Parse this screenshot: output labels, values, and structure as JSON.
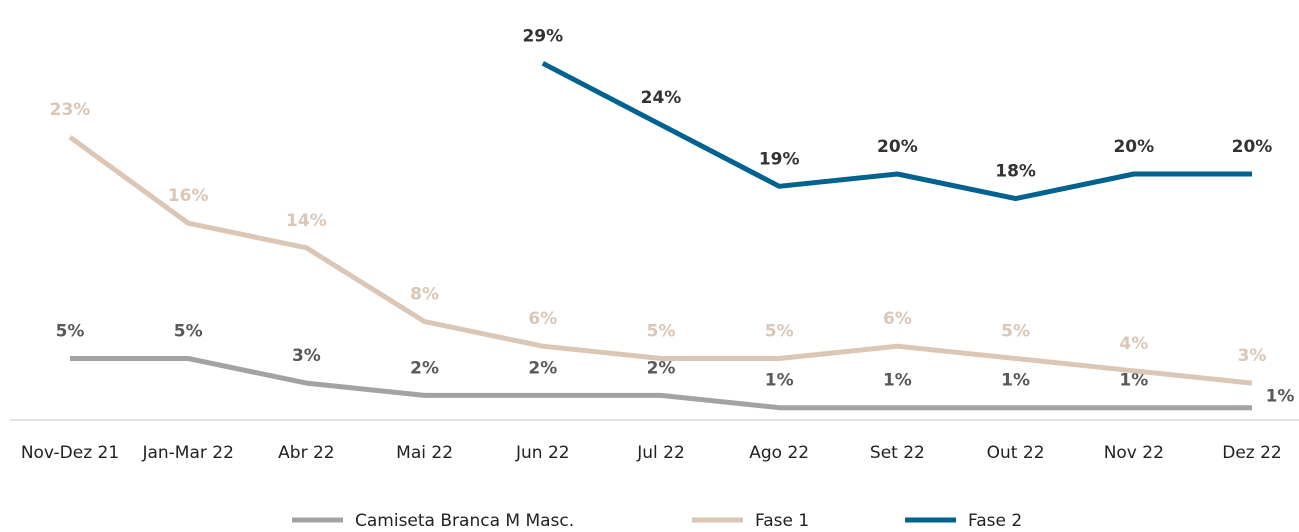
{
  "chart_data": {
    "type": "line",
    "categories": [
      "Nov-Dez 21",
      "Jan-Mar 22",
      "Abr 22",
      "Mai 22",
      "Jun 22",
      "Jul 22",
      "Ago 22",
      "Set 22",
      "Out 22",
      "Nov 22",
      "Dez 22"
    ],
    "series": [
      {
        "name": "Camiseta Branca M Masc.",
        "color": "#a3a3a3",
        "label_color": "#595959",
        "values": [
          5,
          5,
          3,
          2,
          2,
          2,
          1,
          1,
          1,
          1,
          1
        ],
        "value_labels": [
          "5%",
          "5%",
          "3%",
          "2%",
          "2%",
          "2%",
          "1%",
          "1%",
          "1%",
          "1%",
          "1%"
        ]
      },
      {
        "name": "Fase 1",
        "color": "#dcc6b5",
        "label_color": "#dcc6b5",
        "values": [
          23,
          16,
          14,
          8,
          6,
          5,
          5,
          6,
          5,
          4,
          3
        ],
        "value_labels": [
          "23%",
          "16%",
          "14%",
          "8%",
          "6%",
          "5%",
          "5%",
          "6%",
          "5%",
          "4%",
          "3%"
        ]
      },
      {
        "name": "Fase 2",
        "color": "#00628f",
        "label_color": "#333333",
        "values": [
          null,
          null,
          null,
          null,
          29,
          24,
          19,
          20,
          18,
          20,
          20
        ],
        "value_labels": [
          null,
          null,
          null,
          null,
          "29%",
          "24%",
          "19%",
          "20%",
          "18%",
          "20%",
          "20%"
        ]
      }
    ],
    "legend": "bottom"
  }
}
